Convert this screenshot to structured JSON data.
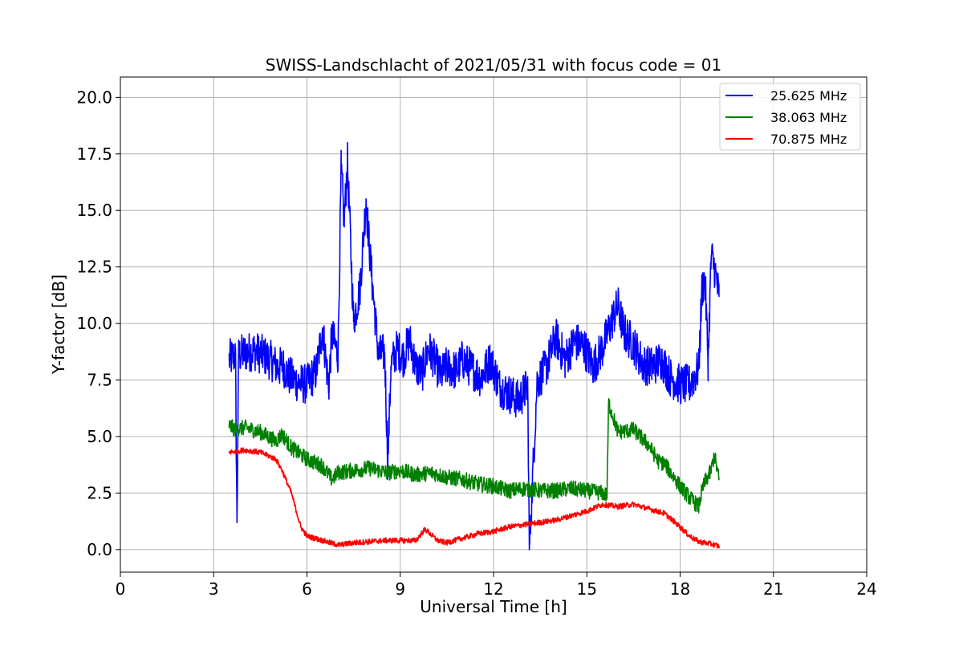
{
  "chart_data": {
    "type": "line",
    "title": "SWISS-Landschlacht of 2021/05/31 with focus code = 01",
    "xlabel": "Universal Time [h]",
    "ylabel": "Y-factor [dB]",
    "xlim": [
      0,
      24
    ],
    "ylim": [
      -1.0,
      20.9
    ],
    "xticks": [
      0,
      3,
      6,
      9,
      12,
      15,
      18,
      21,
      24
    ],
    "xtick_labels": [
      "0",
      "3",
      "6",
      "9",
      "12",
      "15",
      "18",
      "21",
      "24"
    ],
    "yticks": [
      0,
      2.5,
      5,
      7.5,
      10,
      12.5,
      15,
      17.5,
      20
    ],
    "ytick_labels": [
      "0.0",
      "2.5",
      "5.0",
      "7.5",
      "10.0",
      "12.5",
      "15.0",
      "17.5",
      "20.0"
    ],
    "grid": true,
    "legend_position": "top-right",
    "series": [
      {
        "name": "25.625 MHz",
        "color": "#0000ff",
        "x": [
          3.5,
          3.7,
          3.75,
          3.8,
          4.0,
          4.3,
          4.6,
          4.9,
          5.1,
          5.2,
          5.4,
          5.7,
          6.0,
          6.3,
          6.5,
          6.7,
          6.8,
          7.0,
          7.1,
          7.2,
          7.3,
          7.5,
          7.7,
          7.9,
          8.0,
          8.1,
          8.3,
          8.5,
          8.6,
          8.7,
          8.9,
          9.1,
          9.3,
          9.5,
          9.7,
          9.9,
          10.1,
          10.3,
          10.5,
          10.8,
          11.0,
          11.3,
          11.6,
          11.9,
          12.2,
          12.5,
          12.8,
          13.1,
          13.15,
          13.4,
          13.7,
          14.0,
          14.3,
          14.6,
          14.9,
          15.2,
          15.5,
          15.8,
          16.0,
          16.2,
          16.5,
          16.8,
          17.1,
          17.4,
          17.7,
          18.0,
          18.3,
          18.6,
          18.7,
          18.8,
          18.9,
          19.0,
          19.1,
          19.25
        ],
        "y": [
          8.4,
          8.6,
          1.2,
          8.6,
          8.7,
          8.8,
          8.6,
          8.3,
          8.0,
          8.2,
          7.7,
          7.4,
          7.3,
          7.9,
          9.8,
          7.2,
          9.5,
          8.6,
          16.8,
          14.5,
          17.2,
          10.1,
          11.5,
          15.5,
          13.5,
          11.8,
          8.6,
          8.7,
          3.8,
          8.1,
          8.9,
          8.5,
          9.3,
          8.1,
          7.8,
          8.9,
          8.4,
          7.7,
          8.1,
          7.9,
          8.4,
          8.0,
          7.6,
          8.4,
          7.2,
          6.9,
          6.6,
          7.2,
          0.0,
          7.4,
          8.1,
          9.4,
          8.4,
          9.2,
          9.0,
          8.1,
          8.9,
          10.1,
          10.8,
          9.6,
          9.1,
          8.2,
          8.1,
          8.4,
          7.6,
          7.3,
          7.3,
          8.0,
          11.5,
          12.0,
          8.3,
          13.0,
          12.5,
          11.2
        ]
      },
      {
        "name": "38.063 MHz",
        "color": "#008000",
        "x": [
          3.5,
          3.7,
          4.0,
          4.5,
          5.0,
          5.2,
          5.5,
          6.0,
          6.5,
          6.8,
          7.0,
          7.5,
          8.0,
          8.6,
          9.0,
          9.5,
          10.0,
          10.5,
          11.0,
          11.5,
          12.0,
          12.5,
          13.0,
          13.5,
          14.0,
          14.5,
          15.0,
          15.5,
          15.65,
          15.7,
          16.0,
          16.5,
          17.0,
          17.3,
          17.5,
          18.0,
          18.3,
          18.6,
          18.7,
          18.8,
          19.0,
          19.1,
          19.25
        ],
        "y": [
          5.5,
          5.3,
          5.4,
          5.2,
          4.8,
          5.1,
          4.5,
          4.0,
          3.7,
          3.1,
          3.4,
          3.5,
          3.6,
          3.4,
          3.5,
          3.3,
          3.4,
          3.2,
          3.1,
          2.9,
          2.8,
          2.6,
          2.7,
          2.6,
          2.6,
          2.7,
          2.6,
          2.5,
          2.4,
          6.5,
          5.2,
          5.3,
          4.6,
          3.9,
          3.8,
          2.8,
          2.3,
          1.9,
          2.6,
          3.0,
          3.5,
          4.2,
          3.1
        ]
      },
      {
        "name": "70.875 MHz",
        "color": "#ff0000",
        "x": [
          3.5,
          4.0,
          4.5,
          5.0,
          5.2,
          5.5,
          5.8,
          6.0,
          6.5,
          7.0,
          7.5,
          8.0,
          8.5,
          9.0,
          9.5,
          9.8,
          10.2,
          10.5,
          11.0,
          11.5,
          12.0,
          12.5,
          13.0,
          13.5,
          14.0,
          14.5,
          15.0,
          15.5,
          16.0,
          16.5,
          17.0,
          17.5,
          18.0,
          18.3,
          18.6,
          19.0,
          19.25
        ],
        "y": [
          4.3,
          4.4,
          4.3,
          4.0,
          3.5,
          2.5,
          1.0,
          0.6,
          0.4,
          0.2,
          0.3,
          0.35,
          0.4,
          0.4,
          0.4,
          0.9,
          0.4,
          0.3,
          0.5,
          0.7,
          0.8,
          1.0,
          1.1,
          1.2,
          1.3,
          1.5,
          1.7,
          2.0,
          1.9,
          2.0,
          1.8,
          1.6,
          1.0,
          0.6,
          0.35,
          0.25,
          0.15
        ]
      }
    ]
  }
}
